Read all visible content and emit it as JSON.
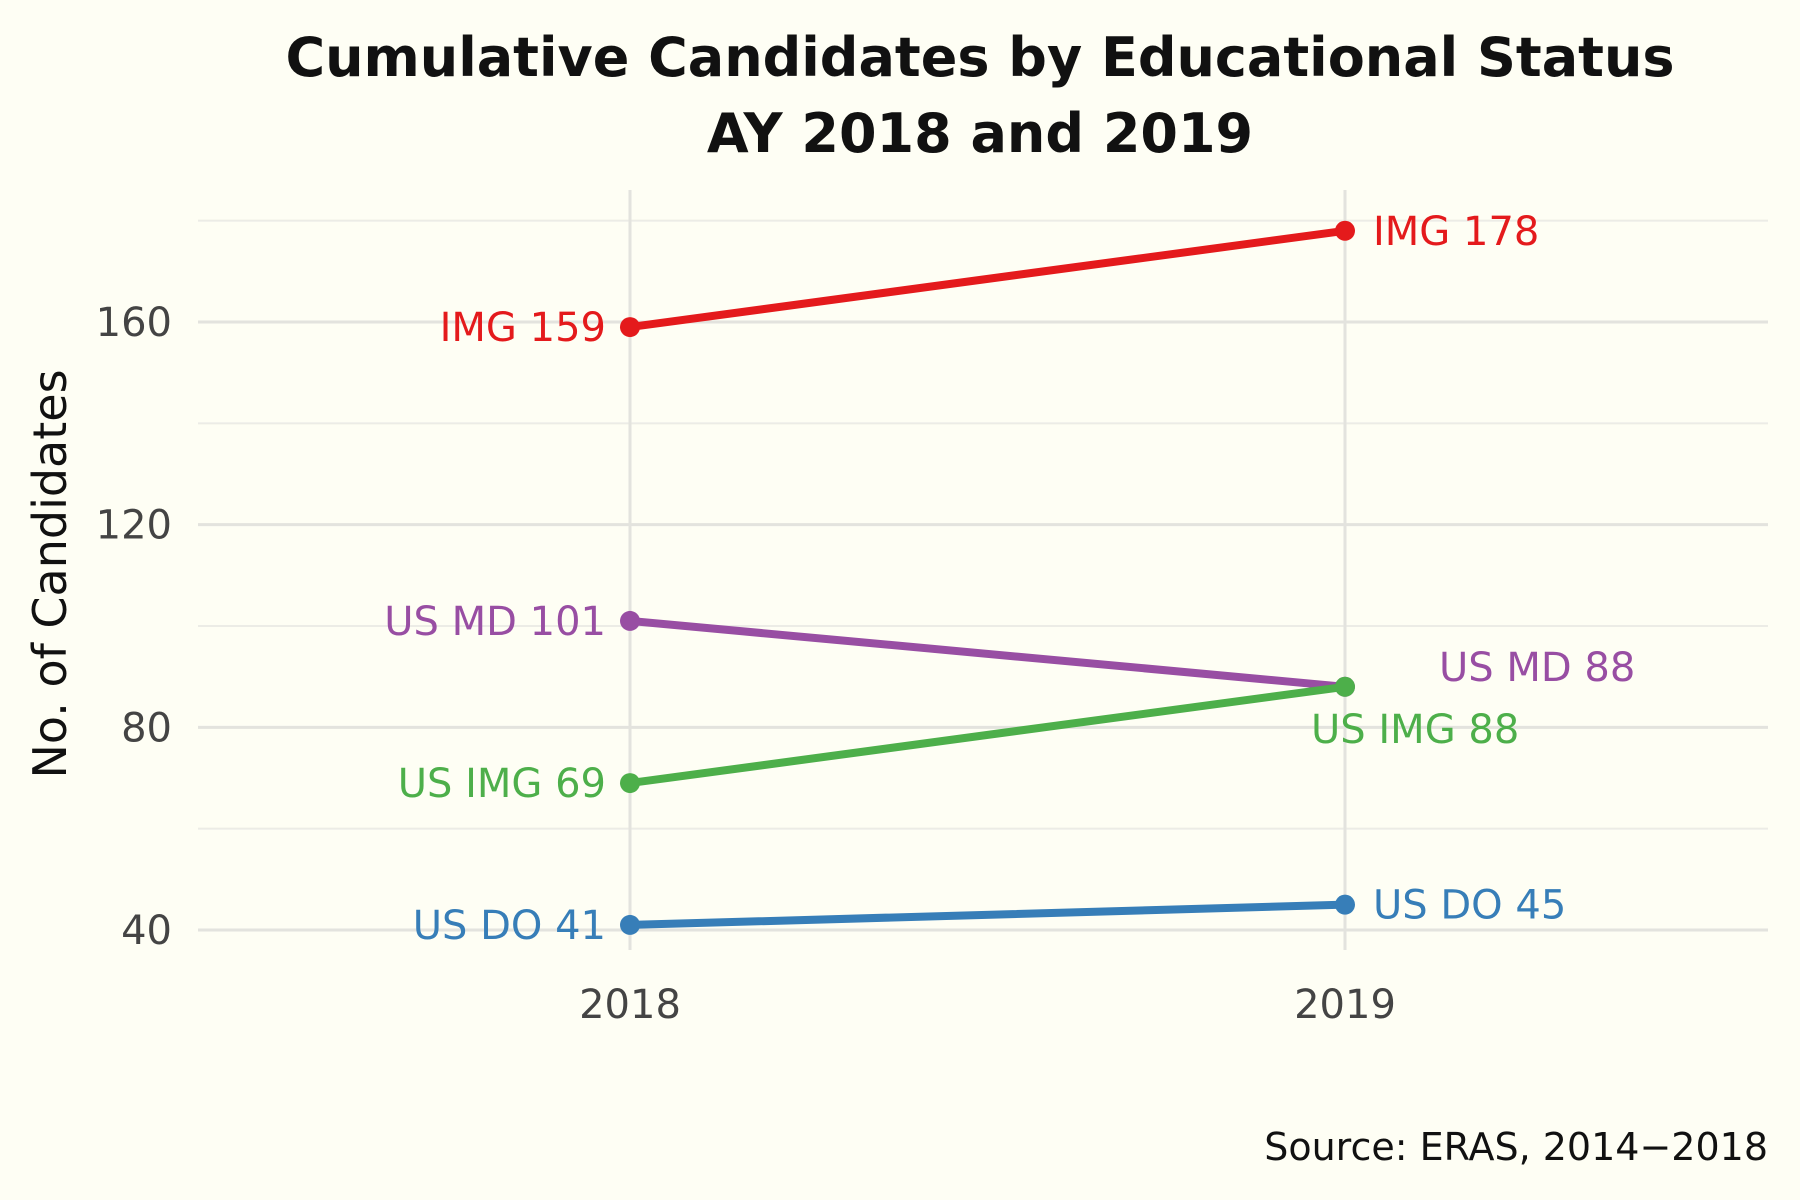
{
  "chart_data": {
    "type": "line",
    "title_lines": [
      "Cumulative Candidates by Educational Status",
      "AY 2018 and 2019"
    ],
    "ylabel": "No. of Candidates",
    "xlabel": "",
    "caption": "Source: ERAS, 2014−2018",
    "x": [
      "2018",
      "2019"
    ],
    "yticks": [
      "40",
      "80",
      "120",
      "160"
    ],
    "ylim": [
      36,
      184
    ],
    "grid": true,
    "legend": "none",
    "series": [
      {
        "id": "img",
        "color": "#E41A1C",
        "values": [
          159,
          178
        ],
        "labels": [
          "IMG 159",
          "IMG 178"
        ]
      },
      {
        "id": "us-md",
        "color": "#984EA3",
        "values": [
          101,
          88
        ],
        "labels": [
          "US MD 101",
          "US MD 88"
        ]
      },
      {
        "id": "us-img",
        "color": "#4DAF4A",
        "values": [
          69,
          88
        ],
        "labels": [
          "US IMG 69",
          "US IMG 88"
        ]
      },
      {
        "id": "us-do",
        "color": "#377EB8",
        "values": [
          41,
          45
        ],
        "labels": [
          "US DO 41",
          "US DO 45"
        ]
      }
    ]
  }
}
